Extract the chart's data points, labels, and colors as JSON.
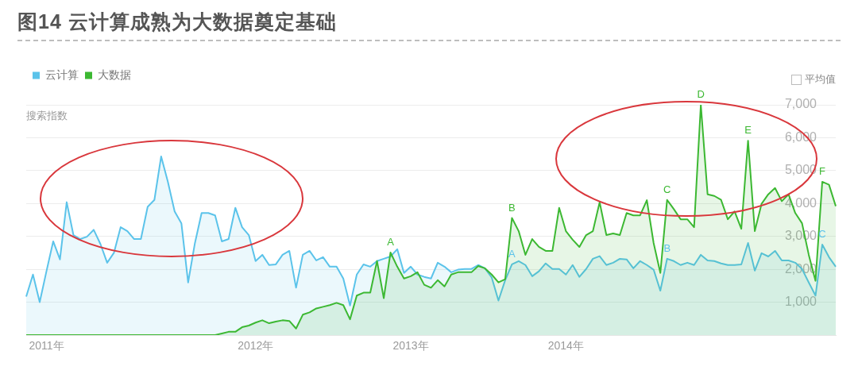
{
  "chart_data": {
    "type": "area",
    "title": "图14 云计算成熟为大数据奠定基础",
    "ylabel": "搜索指数",
    "annotations": [
      "平均值"
    ],
    "legend": "top left",
    "grid": "y",
    "categories": [
      null,
      null,
      null,
      "2011年",
      null,
      null,
      null,
      null,
      null,
      null,
      null,
      null,
      null,
      null,
      null,
      null,
      null,
      null,
      null,
      null,
      null,
      null,
      null,
      null,
      null,
      null,
      null,
      null,
      null,
      null,
      null,
      null,
      null,
      null,
      "2012年",
      null,
      null,
      null,
      null,
      null,
      null,
      null,
      null,
      null,
      null,
      null,
      null,
      null,
      null,
      null,
      null,
      null,
      null,
      null,
      null,
      null,
      null,
      "2013年",
      null,
      null,
      null,
      null,
      null,
      null,
      null,
      null,
      null,
      null,
      null,
      null,
      null,
      null,
      null,
      null,
      null,
      null,
      null,
      null,
      null,
      null,
      "2014年",
      null,
      null,
      null,
      null,
      null,
      null,
      null,
      null,
      null,
      null,
      null,
      null,
      null,
      null,
      null,
      null,
      null,
      null,
      null,
      null,
      null,
      null,
      null,
      null,
      null,
      null,
      null,
      null,
      null,
      null,
      null,
      null,
      null,
      null,
      null,
      null,
      null,
      null,
      null,
      null
    ],
    "ylim": [
      0,
      7000
    ],
    "yticks": [
      {
        "value": 1000,
        "label": "1,000"
      },
      {
        "value": 2000,
        "label": "2,000"
      },
      {
        "value": 3000,
        "label": "3,000"
      },
      {
        "value": 4000,
        "label": "4,000"
      },
      {
        "value": 5000,
        "label": "5,000"
      },
      {
        "value": 6000,
        "label": "6,000"
      },
      {
        "value": 7000,
        "label": "7,000"
      }
    ],
    "series": [
      {
        "name": "云计算",
        "color": "#5bc3ea",
        "values": [
          1170,
          1840,
          1000,
          1940,
          2850,
          2300,
          4040,
          3040,
          2920,
          2990,
          3200,
          2770,
          2200,
          2500,
          3280,
          3160,
          2920,
          2920,
          3900,
          4110,
          5430,
          4660,
          3760,
          3400,
          1600,
          2790,
          3710,
          3710,
          3640,
          2850,
          2920,
          3870,
          3280,
          3040,
          2250,
          2440,
          2130,
          2150,
          2440,
          2560,
          1440,
          2440,
          2560,
          2270,
          2370,
          2080,
          2080,
          1720,
          900,
          1840,
          2150,
          2080,
          2250,
          2320,
          2390,
          2610,
          1890,
          2080,
          1840,
          1770,
          1720,
          2200,
          2080,
          1910,
          1990,
          2010,
          2010,
          2130,
          2030,
          1750,
          1050,
          1670,
          2150,
          2250,
          2130,
          1790,
          1940,
          2180,
          2010,
          2010,
          1840,
          2130,
          1770,
          2010,
          2320,
          2400,
          2130,
          2200,
          2320,
          2300,
          2030,
          2250,
          2130,
          1990,
          1350,
          2320,
          2250,
          2130,
          2200,
          2130,
          2440,
          2270,
          2250,
          2180,
          2130,
          2130,
          2150,
          2800,
          1960,
          2490,
          2390,
          2560,
          2270,
          2270,
          2200,
          2010,
          1600,
          1200,
          2750,
          2370,
          2080
        ],
        "value_labels": [
          null,
          null,
          null,
          null,
          null,
          null,
          null,
          null,
          null,
          null,
          null,
          null,
          null,
          null,
          null,
          null,
          null,
          null,
          null,
          null,
          null,
          null,
          null,
          null,
          null,
          null,
          null,
          null,
          null,
          null,
          null,
          null,
          null,
          null,
          null,
          null,
          null,
          null,
          null,
          null,
          null,
          null,
          null,
          null,
          null,
          null,
          null,
          null,
          null,
          null,
          null,
          null,
          null,
          null,
          null,
          null,
          null,
          null,
          null,
          null,
          null,
          null,
          null,
          null,
          null,
          null,
          null,
          null,
          null,
          null,
          null,
          null,
          "A",
          null,
          null,
          null,
          null,
          null,
          null,
          null,
          null,
          null,
          null,
          null,
          null,
          null,
          null,
          null,
          null,
          null,
          null,
          null,
          null,
          null,
          null,
          "B",
          null,
          null,
          null,
          null,
          null,
          null,
          null,
          null,
          null,
          null,
          null,
          null,
          null,
          null,
          null,
          null,
          null,
          null,
          null,
          null,
          null,
          null,
          "C",
          null,
          null
        ]
      },
      {
        "name": "大数据",
        "color": "#3cb832",
        "values": [
          0,
          0,
          0,
          0,
          0,
          0,
          0,
          0,
          0,
          0,
          0,
          0,
          0,
          0,
          0,
          0,
          0,
          0,
          0,
          0,
          0,
          0,
          0,
          0,
          0,
          0,
          0,
          0,
          0,
          50,
          100,
          100,
          240,
          290,
          380,
          450,
          360,
          410,
          450,
          430,
          200,
          620,
          690,
          810,
          860,
          910,
          980,
          910,
          480,
          1200,
          1290,
          1290,
          2250,
          1120,
          2510,
          2080,
          1720,
          1790,
          1910,
          1530,
          1440,
          1670,
          1480,
          1840,
          1910,
          1910,
          1910,
          2100,
          2030,
          1840,
          1600,
          1700,
          3560,
          3160,
          2440,
          2920,
          2680,
          2560,
          2560,
          3870,
          3160,
          2900,
          2680,
          3040,
          3160,
          4040,
          3040,
          3090,
          3040,
          3710,
          3640,
          3640,
          4100,
          2800,
          1890,
          4110,
          3830,
          3520,
          3520,
          3280,
          7000,
          4280,
          4230,
          4110,
          3520,
          3760,
          3230,
          5910,
          3160,
          3990,
          4280,
          4470,
          4070,
          4280,
          3710,
          3400,
          2440,
          1650,
          4660,
          4570,
          3920
        ],
        "value_labels": [
          null,
          null,
          null,
          null,
          null,
          null,
          null,
          null,
          null,
          null,
          null,
          null,
          null,
          null,
          null,
          null,
          null,
          null,
          null,
          null,
          null,
          null,
          null,
          null,
          null,
          null,
          null,
          null,
          null,
          null,
          null,
          null,
          null,
          null,
          null,
          null,
          null,
          null,
          null,
          null,
          null,
          null,
          null,
          null,
          null,
          null,
          null,
          null,
          null,
          null,
          null,
          null,
          null,
          null,
          "A",
          null,
          null,
          null,
          null,
          null,
          null,
          null,
          null,
          null,
          null,
          null,
          null,
          null,
          null,
          null,
          null,
          null,
          "B",
          null,
          null,
          null,
          null,
          null,
          null,
          null,
          null,
          null,
          null,
          null,
          null,
          null,
          null,
          null,
          null,
          null,
          null,
          null,
          null,
          null,
          null,
          "C",
          null,
          null,
          null,
          null,
          "D",
          null,
          null,
          null,
          null,
          null,
          null,
          "E",
          null,
          null,
          null,
          null,
          null,
          null,
          null,
          null,
          null,
          null,
          "F",
          null,
          null
        ]
      }
    ]
  }
}
